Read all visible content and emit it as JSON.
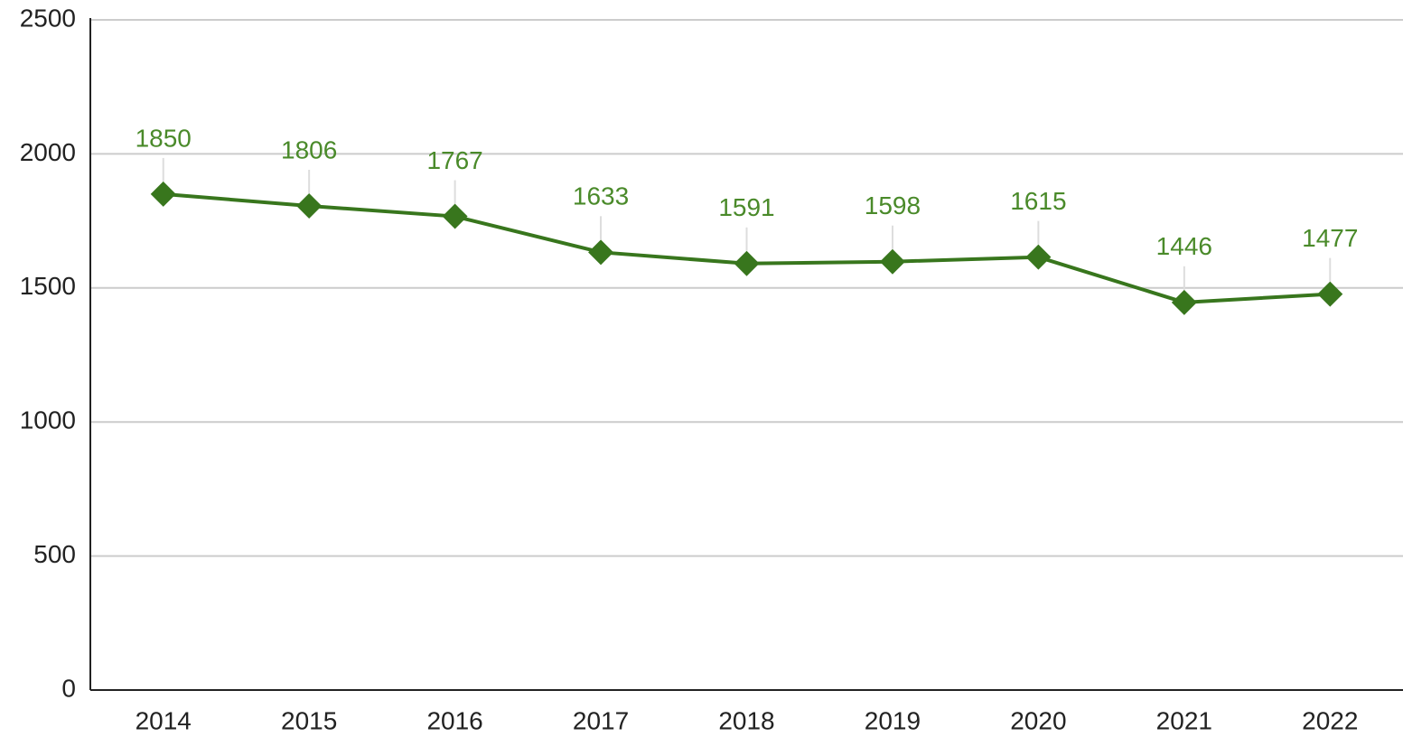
{
  "chart_data": {
    "type": "line",
    "categories": [
      "2014",
      "2015",
      "2016",
      "2017",
      "2018",
      "2019",
      "2020",
      "2021",
      "2022"
    ],
    "series": [
      {
        "color": "#38761d",
        "values": [
          1850,
          1806,
          1767,
          1633,
          1591,
          1598,
          1615,
          1446,
          1477
        ]
      }
    ],
    "ylim": [
      0,
      2500
    ],
    "yticks": [
      0,
      500,
      1000,
      1500,
      2000,
      2500
    ],
    "grid": true,
    "data_labels": true
  }
}
